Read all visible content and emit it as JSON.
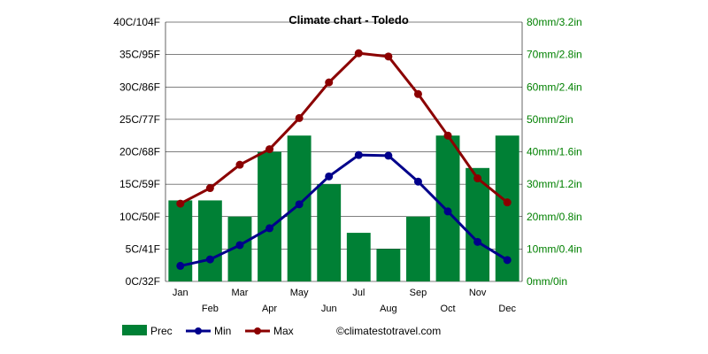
{
  "chart_data": {
    "type": "bar",
    "title": "Climate chart - Toledo",
    "categories": [
      "Jan",
      "Feb",
      "Mar",
      "Apr",
      "May",
      "Jun",
      "Jul",
      "Aug",
      "Sep",
      "Oct",
      "Nov",
      "Dec"
    ],
    "series": [
      {
        "name": "Prec",
        "type": "bar",
        "axis": "right",
        "color": "#008035",
        "values": [
          25,
          25,
          20,
          40,
          45,
          30,
          15,
          10,
          20,
          45,
          35,
          45
        ]
      },
      {
        "name": "Min",
        "type": "line",
        "axis": "left",
        "color": "#00008b",
        "values": [
          2.4,
          3.4,
          5.6,
          8.2,
          11.9,
          16.2,
          19.5,
          19.4,
          15.4,
          10.8,
          6.1,
          3.3
        ]
      },
      {
        "name": "Max",
        "type": "line",
        "axis": "left",
        "color": "#8b0000",
        "values": [
          12.0,
          14.4,
          18.0,
          20.4,
          25.2,
          30.7,
          35.2,
          34.7,
          28.9,
          22.5,
          15.9,
          12.2
        ]
      }
    ],
    "ylim": [
      0,
      40
    ],
    "y2lim": [
      0,
      80
    ],
    "y_ticks": [
      "0C/32F",
      "5C/41F",
      "10C/50F",
      "15C/59F",
      "20C/68F",
      "25C/77F",
      "30C/86F",
      "35C/95F",
      "40C/104F"
    ],
    "y2_ticks": [
      "0mm/0in",
      "10mm/0.4in",
      "20mm/0.8in",
      "30mm/1.2in",
      "40mm/1.6in",
      "50mm/2in",
      "60mm/2.4in",
      "70mm/2.8in",
      "80mm/3.2in"
    ],
    "grid": true,
    "legend": {
      "position": "bottom-left",
      "entries": [
        "Prec",
        "Min",
        "Max"
      ]
    },
    "credit": "©climatestotravel.com"
  }
}
